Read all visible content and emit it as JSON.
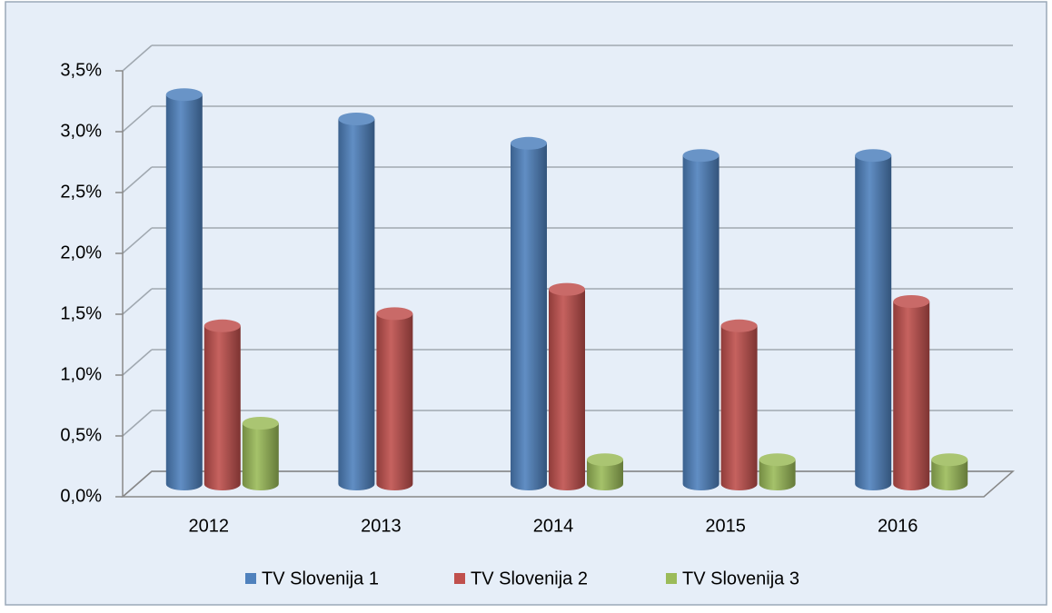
{
  "chart_data": {
    "type": "bar",
    "categories": [
      "2012",
      "2013",
      "2014",
      "2015",
      "2016"
    ],
    "series": [
      {
        "name": "TV Slovenija 1",
        "color": "#4f81bd",
        "values": [
          3.2,
          3.0,
          2.8,
          2.7,
          2.7
        ]
      },
      {
        "name": "TV Slovenija 2",
        "color": "#c0504d",
        "values": [
          1.3,
          1.4,
          1.6,
          1.3,
          1.5
        ]
      },
      {
        "name": "TV Slovenija 3",
        "color": "#9bbb59",
        "values": [
          0.5,
          null,
          0.2,
          0.2,
          0.2
        ]
      }
    ],
    "ylim": [
      0,
      3.5
    ],
    "yticks": [
      {
        "value": 0,
        "label": "0,0%"
      },
      {
        "value": 0.5,
        "label": "0,5%"
      },
      {
        "value": 1.0,
        "label": "1,0%"
      },
      {
        "value": 1.5,
        "label": "1,5%"
      },
      {
        "value": 2.0,
        "label": "2,0%"
      },
      {
        "value": 2.5,
        "label": "2,5%"
      },
      {
        "value": 3.0,
        "label": "3,0%"
      },
      {
        "value": 3.5,
        "label": "3,5%"
      }
    ],
    "grid": true,
    "legend": "bottom"
  }
}
